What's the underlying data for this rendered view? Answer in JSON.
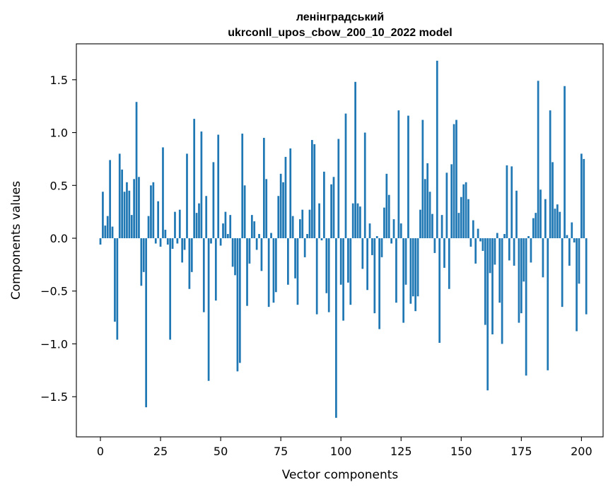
{
  "chart_data": {
    "type": "bar",
    "title_lines": [
      "ленінградський",
      "ukrconll_upos_cbow_200_10_2022 model"
    ],
    "xlabel": "Vector components",
    "ylabel": "Components values",
    "xlim": [
      -10,
      209
    ],
    "ylim": [
      -1.88,
      1.84
    ],
    "xticks": [
      0,
      25,
      50,
      75,
      100,
      125,
      150,
      175,
      200
    ],
    "xtick_labels": [
      "0",
      "25",
      "50",
      "75",
      "100",
      "125",
      "150",
      "175",
      "200"
    ],
    "yticks": [
      -1.5,
      -1.0,
      -0.5,
      0.0,
      0.5,
      1.0,
      1.5
    ],
    "ytick_labels": [
      "−1.5",
      "−1.0",
      "−0.5",
      "0.0",
      "0.5",
      "1.0",
      "1.5"
    ],
    "bar_color": "#1f77b4",
    "grid": false,
    "values": [
      -0.06,
      0.44,
      0.12,
      0.21,
      0.74,
      0.11,
      -0.79,
      -0.96,
      0.8,
      0.65,
      0.44,
      0.53,
      0.45,
      0.22,
      0.56,
      1.29,
      0.58,
      -0.45,
      -0.32,
      -1.6,
      0.21,
      0.5,
      0.53,
      -0.05,
      0.35,
      -0.08,
      0.86,
      0.08,
      -0.06,
      -0.96,
      -0.1,
      0.25,
      -0.05,
      0.27,
      -0.23,
      -0.11,
      0.8,
      -0.48,
      -0.32,
      1.13,
      0.24,
      0.33,
      1.01,
      -0.7,
      0.4,
      -1.35,
      -0.05,
      0.72,
      -0.59,
      0.98,
      -0.07,
      0.14,
      0.25,
      0.04,
      0.22,
      -0.27,
      -0.35,
      -1.26,
      -1.18,
      0.99,
      0.5,
      -0.64,
      -0.24,
      0.22,
      0.16,
      -0.11,
      0.04,
      -0.31,
      0.95,
      0.56,
      -0.65,
      0.05,
      -0.61,
      -0.51,
      0.4,
      0.61,
      0.53,
      0.77,
      -0.44,
      0.85,
      0.21,
      -0.38,
      -0.63,
      0.18,
      0.27,
      -0.18,
      0.04,
      0.27,
      0.93,
      0.89,
      -0.72,
      0.33,
      -0.02,
      0.63,
      -0.52,
      -0.7,
      0.51,
      0.58,
      -1.7,
      0.94,
      -0.44,
      -0.78,
      1.18,
      -0.42,
      -0.63,
      0.33,
      1.48,
      0.33,
      0.3,
      -0.29,
      1.0,
      -0.49,
      0.14,
      -0.16,
      -0.71,
      0.02,
      -0.86,
      -0.18,
      0.29,
      0.61,
      0.41,
      -0.05,
      0.18,
      -0.61,
      1.21,
      0.14,
      -0.8,
      -0.44,
      1.16,
      -0.62,
      -0.55,
      -0.69,
      -0.55,
      0.27,
      1.12,
      0.56,
      0.71,
      0.44,
      0.23,
      -0.14,
      1.68,
      -0.99,
      0.22,
      -0.28,
      0.62,
      -0.48,
      0.7,
      1.08,
      1.12,
      0.24,
      0.39,
      0.51,
      0.53,
      0.37,
      -0.08,
      0.17,
      -0.24,
      0.09,
      -0.03,
      -0.12,
      -0.82,
      -1.44,
      -0.33,
      -0.91,
      -0.25,
      0.05,
      -0.61,
      -1.0,
      0.04,
      0.69,
      -0.21,
      0.68,
      -0.26,
      0.45,
      -0.8,
      -0.71,
      -0.41,
      -1.3,
      0.02,
      -0.23,
      0.19,
      0.24,
      1.49,
      0.46,
      -0.37,
      0.37,
      -1.25,
      1.21,
      0.72,
      0.28,
      0.32,
      0.25,
      -0.65,
      1.44,
      0.03,
      -0.26,
      0.15,
      -0.04,
      -0.88,
      -0.43,
      0.8,
      0.75,
      -0.72
    ]
  }
}
